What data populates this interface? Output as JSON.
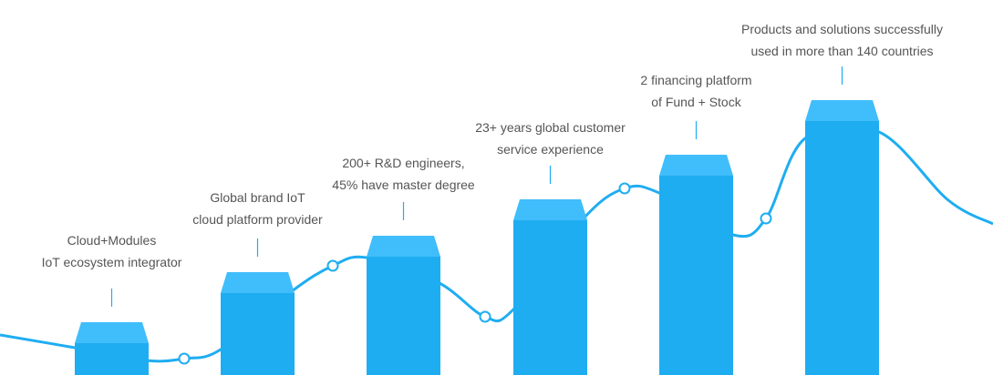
{
  "colors": {
    "bar": "#1fadf1",
    "bar_cap": "#40bdfb",
    "curve": "#1fadf1",
    "text": "#555555"
  },
  "milestones": [
    {
      "line1": "Cloud+Modules",
      "line2": "IoT ecosystem integrator"
    },
    {
      "line1": "Global brand IoT",
      "line2": "cloud platform provider"
    },
    {
      "line1": "200+ R&D engineers,",
      "line2": "45% have master degree"
    },
    {
      "line1": "23+ years global customer",
      "line2": "service experience"
    },
    {
      "line1": "2 financing platform",
      "line2": "of Fund + Stock"
    },
    {
      "line1": "Products and solutions successfully",
      "line2": "used in more than 140 countries"
    }
  ]
}
